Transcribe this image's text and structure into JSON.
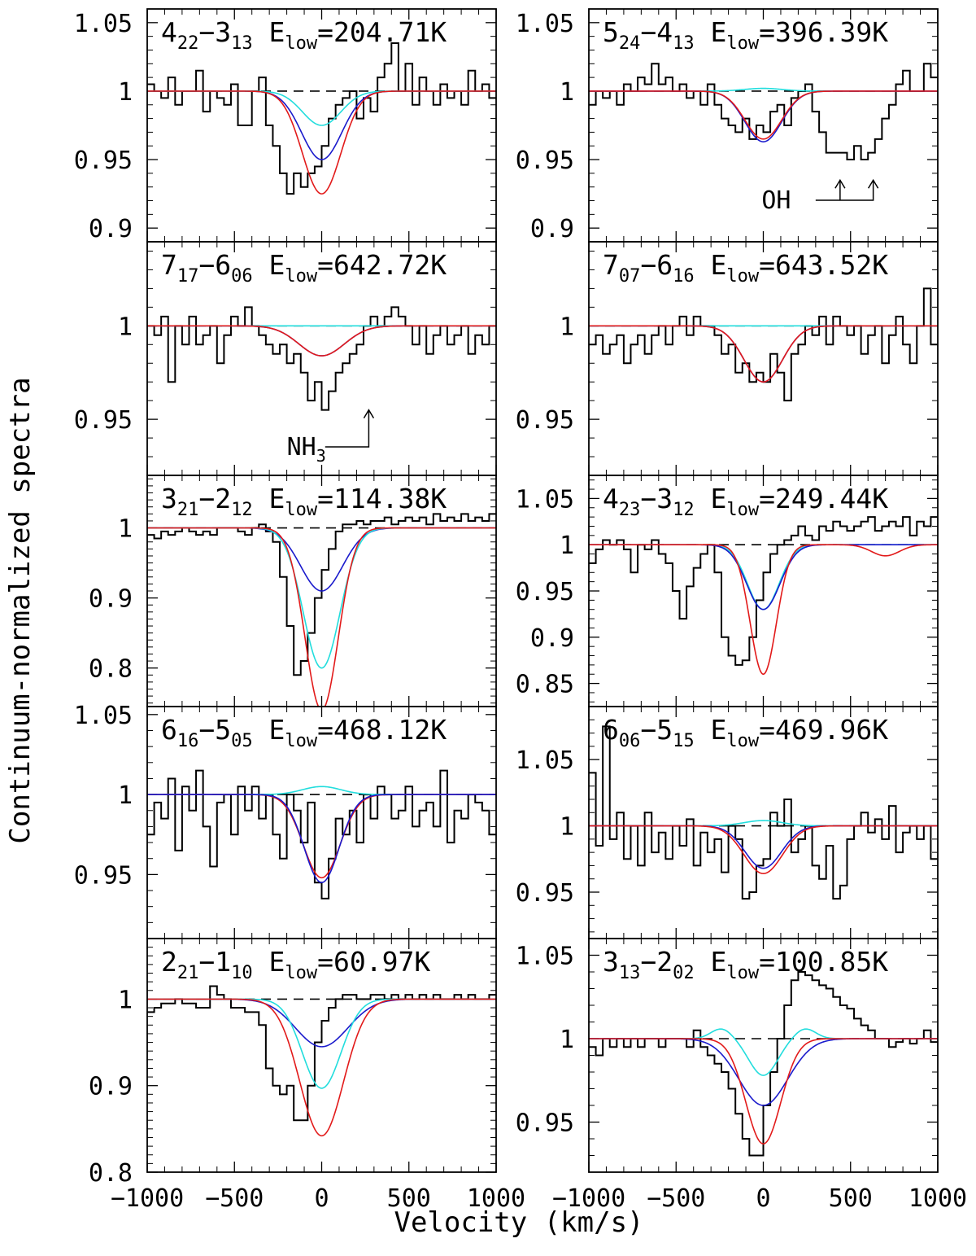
{
  "figure": {
    "xlabel": "Velocity (km/s)",
    "ylabel": "Continuum-normalized spectra"
  },
  "colors": {
    "data": "#000000",
    "continuum": "#000000",
    "model_blue": "#1a1acc",
    "model_cyan": "#22dddd",
    "model_red": "#e21a1a"
  },
  "chart_data": [
    {
      "type": "line",
      "panel": "top-left",
      "transition": {
        "upper": "4",
        "upper_sub": "22",
        "lower": "3",
        "lower_sub": "13"
      },
      "elow": "204.71K",
      "xlim": [
        -1000,
        1000
      ],
      "ylim": [
        0.89,
        1.06
      ],
      "xticks": [
        -1000,
        -500,
        0,
        500,
        1000
      ],
      "yticks": [
        0.9,
        0.95,
        1,
        1.05
      ],
      "ytick_labels": [
        "0.9",
        "0.95",
        "1",
        "1.05"
      ],
      "show_xtick_labels": false,
      "spectrum": {
        "x0": -1000,
        "dx": 40,
        "values": [
          1.005,
          1.0,
          0.995,
          1.01,
          0.99,
          1.0,
          1.0,
          1.015,
          0.985,
          1.0,
          0.995,
          0.99,
          1.005,
          0.975,
          0.975,
          1.0,
          1.01,
          0.975,
          0.96,
          0.94,
          0.925,
          0.94,
          0.93,
          0.94,
          0.945,
          0.96,
          0.98,
          0.99,
          0.995,
          1.0,
          0.98,
          0.995,
          0.985,
          1.01,
          1.02,
          1.035,
          1.0,
          1.02,
          0.99,
          1.01,
          1.0,
          0.99,
          1.005,
          0.995,
          1.0,
          0.99,
          1.015,
          1.0,
          1.005,
          0.995
        ]
      },
      "models": [
        {
          "name": "blue",
          "depth": 0.05,
          "sigma": 115
        },
        {
          "name": "cyan",
          "depth": 0.025,
          "sigma": 110
        },
        {
          "name": "red",
          "depth": 0.075,
          "sigma": 110
        }
      ],
      "annotations": []
    },
    {
      "type": "line",
      "panel": "top-right",
      "transition": {
        "upper": "5",
        "upper_sub": "24",
        "lower": "4",
        "lower_sub": "13"
      },
      "elow": "396.39K",
      "xlim": [
        -1000,
        1000
      ],
      "ylim": [
        0.89,
        1.06
      ],
      "xticks": [
        -1000,
        -500,
        0,
        500,
        1000
      ],
      "yticks": [
        0.9,
        0.95,
        1,
        1.05
      ],
      "ytick_labels": [
        "0.9",
        "0.95",
        "1",
        "1.05"
      ],
      "show_xtick_labels": false,
      "spectrum": {
        "x0": -1000,
        "dx": 40,
        "values": [
          0.99,
          1.0,
          0.995,
          1.0,
          0.99,
          1.005,
          1.0,
          1.01,
          1.005,
          1.02,
          1.005,
          1.01,
          1.0,
          1.005,
          0.995,
          1.0,
          0.99,
          1.005,
          0.99,
          0.98,
          0.975,
          0.97,
          0.98,
          0.965,
          0.975,
          0.97,
          0.985,
          0.99,
          0.975,
          0.995,
          1.0,
          1.005,
          0.985,
          0.97,
          0.955,
          0.955,
          0.955,
          0.95,
          0.96,
          0.95,
          0.955,
          0.965,
          0.98,
          0.99,
          1.005,
          1.015,
          1.0,
          1.0,
          1.02,
          1.01
        ]
      },
      "models": [
        {
          "name": "cyan",
          "depth": -0.002,
          "sigma": 110
        },
        {
          "name": "blue",
          "depth": 0.037,
          "sigma": 105
        },
        {
          "name": "red",
          "depth": 0.035,
          "sigma": 105
        }
      ],
      "annotations": [
        {
          "label": "OH"
        }
      ]
    },
    {
      "type": "line",
      "panel": "row2-left",
      "transition": {
        "upper": "7",
        "upper_sub": "17",
        "lower": "6",
        "lower_sub": "06"
      },
      "elow": "642.72K",
      "xlim": [
        -1000,
        1000
      ],
      "ylim": [
        0.92,
        1.045
      ],
      "xticks": [
        -1000,
        -500,
        0,
        500,
        1000
      ],
      "yticks": [
        0.95,
        1
      ],
      "ytick_labels": [
        "0.95",
        "1"
      ],
      "show_xtick_labels": false,
      "spectrum": {
        "x0": -1000,
        "dx": 40,
        "values": [
          1.0,
          0.995,
          1.005,
          0.97,
          1.0,
          0.99,
          1.005,
          0.99,
          0.995,
          1.0,
          0.98,
          0.995,
          1.005,
          1.0,
          1.01,
          1.0,
          0.995,
          0.99,
          0.985,
          0.99,
          0.98,
          0.985,
          0.975,
          0.96,
          0.97,
          0.955,
          0.965,
          0.975,
          0.98,
          0.985,
          0.99,
          1.0,
          1.005,
          1.0,
          1.005,
          1.01,
          1.005,
          1.0,
          0.99,
          1.0,
          0.985,
          0.995,
          1.0,
          0.99,
          0.995,
          1.0,
          0.985,
          0.995,
          0.99,
          1.0
        ]
      },
      "models": [
        {
          "name": "cyan",
          "depth": 0.0,
          "sigma": 110
        },
        {
          "name": "blue",
          "depth": 0.016,
          "sigma": 130
        },
        {
          "name": "red",
          "depth": 0.016,
          "sigma": 130
        }
      ],
      "annotations": [
        {
          "label": "NH",
          "sub": "3"
        }
      ]
    },
    {
      "type": "line",
      "panel": "row2-right",
      "transition": {
        "upper": "7",
        "upper_sub": "07",
        "lower": "6",
        "lower_sub": "16"
      },
      "elow": "643.52K",
      "xlim": [
        -1000,
        1000
      ],
      "ylim": [
        0.92,
        1.045
      ],
      "xticks": [
        -1000,
        -500,
        0,
        500,
        1000
      ],
      "yticks": [
        0.95,
        1
      ],
      "ytick_labels": [
        "0.95",
        "1"
      ],
      "show_xtick_labels": false,
      "spectrum": {
        "x0": -1000,
        "dx": 40,
        "values": [
          0.99,
          0.995,
          0.985,
          0.99,
          0.995,
          0.98,
          0.99,
          0.995,
          0.985,
          0.995,
          1.0,
          0.99,
          1.0,
          1.005,
          0.995,
          1.005,
          1.0,
          1.0,
          0.995,
          0.985,
          0.99,
          0.975,
          0.98,
          0.97,
          0.975,
          0.97,
          0.985,
          0.975,
          0.96,
          0.985,
          0.99,
          1.0,
          0.995,
          1.005,
          0.99,
          1.005,
          1.0,
          0.995,
          1.0,
          0.985,
          0.995,
          1.0,
          0.98,
          0.995,
          1.005,
          0.99,
          0.98,
          1.0,
          1.02,
          0.99
        ]
      },
      "models": [
        {
          "name": "cyan",
          "depth": 0.0,
          "sigma": 110
        },
        {
          "name": "blue",
          "depth": 0.03,
          "sigma": 110
        },
        {
          "name": "red",
          "depth": 0.03,
          "sigma": 110
        }
      ],
      "annotations": []
    },
    {
      "type": "line",
      "panel": "row3-left",
      "transition": {
        "upper": "3",
        "upper_sub": "21",
        "lower": "2",
        "lower_sub": "12"
      },
      "elow": "114.38K",
      "xlim": [
        -1000,
        1000
      ],
      "ylim": [
        0.745,
        1.075
      ],
      "xticks": [
        -1000,
        -500,
        0,
        500,
        1000
      ],
      "yticks": [
        0.8,
        0.9,
        1
      ],
      "ytick_labels": [
        "0.8",
        "0.9",
        "1"
      ],
      "show_xtick_labels": false,
      "spectrum": {
        "x0": -1000,
        "dx": 40,
        "values": [
          0.99,
          0.985,
          0.995,
          0.99,
          0.995,
          1.0,
          0.995,
          0.99,
          0.995,
          0.99,
          1.0,
          1.0,
          1.0,
          0.995,
          0.99,
          1.0,
          1.005,
          0.995,
          0.98,
          0.93,
          0.86,
          0.79,
          0.81,
          0.85,
          0.9,
          0.94,
          0.97,
          0.995,
          1.005,
          1.005,
          1.01,
          1.005,
          1.01,
          1.01,
          1.015,
          1.005,
          1.01,
          1.015,
          1.01,
          1.015,
          1.005,
          1.02,
          1.01,
          1.015,
          1.01,
          1.02,
          1.01,
          1.015,
          1.01,
          1.02
        ]
      },
      "models": [
        {
          "name": "blue",
          "depth": 0.09,
          "sigma": 120
        },
        {
          "name": "cyan",
          "depth": 0.2,
          "sigma": 105
        },
        {
          "name": "red",
          "depth": 0.26,
          "sigma": 95
        }
      ],
      "annotations": []
    },
    {
      "type": "line",
      "panel": "row3-right",
      "transition": {
        "upper": "4",
        "upper_sub": "23",
        "lower": "3",
        "lower_sub": "12"
      },
      "elow": "249.44K",
      "xlim": [
        -1000,
        1000
      ],
      "ylim": [
        0.825,
        1.075
      ],
      "xticks": [
        -1000,
        -500,
        0,
        500,
        1000
      ],
      "yticks": [
        0.85,
        0.9,
        0.95,
        1,
        1.05
      ],
      "ytick_labels": [
        "0.85",
        "0.9",
        "0.95",
        "1",
        "1.05"
      ],
      "show_xtick_labels": false,
      "spectrum": {
        "x0": -1000,
        "dx": 40,
        "values": [
          0.98,
          0.995,
          1.005,
          1.0,
          1.005,
          0.995,
          0.97,
          1.0,
          0.995,
          1.005,
          0.99,
          0.98,
          0.95,
          0.92,
          0.955,
          0.975,
          0.99,
          1.0,
          0.97,
          0.9,
          0.88,
          0.87,
          0.875,
          0.9,
          0.94,
          0.97,
          0.99,
          1.0,
          1.005,
          1.01,
          1.02,
          1.01,
          1.005,
          1.02,
          1.015,
          1.025,
          1.02,
          1.015,
          1.02,
          1.025,
          1.03,
          1.015,
          1.02,
          1.025,
          1.02,
          1.03,
          1.01,
          1.025,
          1.02,
          1.03
        ]
      },
      "models": [
        {
          "name": "cyan",
          "depth": 0.07,
          "sigma": 90
        },
        {
          "name": "blue",
          "depth": 0.07,
          "sigma": 95
        },
        {
          "name": "red",
          "depth": 0.14,
          "sigma": 75,
          "second": {
            "center": 700,
            "depth": 0.012,
            "sigma": 80
          }
        }
      ],
      "annotations": []
    },
    {
      "type": "line",
      "panel": "row4-left",
      "transition": {
        "upper": "6",
        "upper_sub": "16",
        "lower": "5",
        "lower_sub": "05"
      },
      "elow": "468.12K",
      "xlim": [
        -1000,
        1000
      ],
      "ylim": [
        0.91,
        1.055
      ],
      "xticks": [
        -1000,
        -500,
        0,
        500,
        1000
      ],
      "yticks": [
        0.95,
        1,
        1.05
      ],
      "ytick_labels": [
        "0.95",
        "1",
        "1.05"
      ],
      "show_xtick_labels": false,
      "spectrum": {
        "x0": -1000,
        "dx": 40,
        "values": [
          0.975,
          0.995,
          0.985,
          1.01,
          0.965,
          1.005,
          0.99,
          1.015,
          0.98,
          0.955,
          0.995,
          1.0,
          0.975,
          1.005,
          0.99,
          1.005,
          0.985,
          1.0,
          0.975,
          0.96,
          1.0,
          0.99,
          0.97,
          0.995,
          0.945,
          0.935,
          0.96,
          0.985,
          0.975,
          0.99,
          0.97,
          1.0,
          0.985,
          1.005,
          1.0,
          0.985,
          0.99,
          1.005,
          0.98,
          0.99,
          0.995,
          0.98,
          1.015,
          0.97,
          0.99,
          0.985,
          1.0,
          0.995,
          0.99,
          0.975
        ]
      },
      "models": [
        {
          "name": "cyan",
          "depth": -0.005,
          "sigma": 110
        },
        {
          "name": "red",
          "depth": 0.052,
          "sigma": 105
        },
        {
          "name": "blue",
          "depth": 0.055,
          "sigma": 100
        }
      ],
      "annotations": []
    },
    {
      "type": "line",
      "panel": "row4-right",
      "transition": {
        "upper": "6",
        "upper_sub": "06",
        "lower": "5",
        "lower_sub": "15"
      },
      "elow": "469.96K",
      "xlim": [
        -1000,
        1000
      ],
      "ylim": [
        0.915,
        1.09
      ],
      "xticks": [
        -1000,
        -500,
        0,
        500,
        1000
      ],
      "yticks": [
        0.95,
        1,
        1.05
      ],
      "ytick_labels": [
        "0.95",
        "1",
        "1.05"
      ],
      "show_xtick_labels": false,
      "spectrum": {
        "x0": -1000,
        "dx": 40,
        "values": [
          1.04,
          0.985,
          1.075,
          0.99,
          1.01,
          0.975,
          1.0,
          0.97,
          1.01,
          0.98,
          0.995,
          0.975,
          1.0,
          0.985,
          1.005,
          0.97,
          0.995,
          0.98,
          0.99,
          0.965,
          1.0,
          0.99,
          0.945,
          0.95,
          0.97,
          0.975,
          1.01,
          1.0,
          1.02,
          0.98,
          0.99,
          1.0,
          0.97,
          0.96,
          0.985,
          0.945,
          0.955,
          0.99,
          1.0,
          1.01,
          0.995,
          1.005,
          0.99,
          1.015,
          0.98,
          0.995,
          1.0,
          0.99,
          1.0,
          0.975
        ]
      },
      "models": [
        {
          "name": "cyan",
          "depth": -0.004,
          "sigma": 110
        },
        {
          "name": "blue",
          "depth": 0.032,
          "sigma": 105
        },
        {
          "name": "red",
          "depth": 0.036,
          "sigma": 110
        }
      ],
      "annotations": []
    },
    {
      "type": "line",
      "panel": "bottom-left",
      "transition": {
        "upper": "2",
        "upper_sub": "21",
        "lower": "1",
        "lower_sub": "10"
      },
      "elow": "60.97K",
      "xlim": [
        -1000,
        1000
      ],
      "ylim": [
        0.8,
        1.07
      ],
      "xticks": [
        -1000,
        -500,
        0,
        500,
        1000
      ],
      "yticks": [
        0.8,
        0.9,
        1
      ],
      "ytick_labels": [
        "0.8",
        "0.9",
        "1"
      ],
      "show_xtick_labels": true,
      "xtick_labels": [
        "−1000",
        "−500",
        "0",
        "500",
        "1000"
      ],
      "spectrum": {
        "x0": -1000,
        "dx": 40,
        "values": [
          0.985,
          0.99,
          0.995,
          0.995,
          1.0,
          0.995,
          0.995,
          0.99,
          0.99,
          1.015,
          1.005,
          1.0,
          0.99,
          0.99,
          0.985,
          0.985,
          0.97,
          0.92,
          0.9,
          0.89,
          0.9,
          0.86,
          0.86,
          0.9,
          0.95,
          0.975,
          0.99,
          1.0,
          1.005,
          1.005,
          1.0,
          1.0,
          1.005,
          1.005,
          1.0,
          1.005,
          1.0,
          1.005,
          1.0,
          1.005,
          1.0,
          1.005,
          1.0,
          1.0,
          1.005,
          1.0,
          1.005,
          1.0,
          1.0,
          1.005
        ]
      },
      "models": [
        {
          "name": "blue",
          "depth": 0.055,
          "sigma": 150
        },
        {
          "name": "cyan",
          "depth": 0.103,
          "sigma": 110
        },
        {
          "name": "red",
          "depth": 0.158,
          "sigma": 125
        }
      ],
      "annotations": []
    },
    {
      "type": "line",
      "panel": "bottom-right",
      "transition": {
        "upper": "3",
        "upper_sub": "13",
        "lower": "2",
        "lower_sub": "02"
      },
      "elow": "100.85K",
      "xlim": [
        -1000,
        1000
      ],
      "ylim": [
        0.92,
        1.06
      ],
      "xticks": [
        -1000,
        -500,
        0,
        500,
        1000
      ],
      "yticks": [
        0.95,
        1,
        1.05
      ],
      "ytick_labels": [
        "0.95",
        "1",
        "1.05"
      ],
      "show_xtick_labels": true,
      "xtick_labels": [
        "−1000",
        "−500",
        "0",
        "500",
        "1000"
      ],
      "spectrum": {
        "x0": -1000,
        "dx": 40,
        "values": [
          0.995,
          0.99,
          1.0,
          0.995,
          1.0,
          0.995,
          1.0,
          0.995,
          1.0,
          1.0,
          0.995,
          1.0,
          1.0,
          1.0,
          0.995,
          1.005,
          0.995,
          0.99,
          0.985,
          0.98,
          0.97,
          0.955,
          0.94,
          0.93,
          0.93,
          0.96,
          0.98,
          1.0,
          1.02,
          1.035,
          1.04,
          1.038,
          1.035,
          1.032,
          1.03,
          1.025,
          1.02,
          1.018,
          1.012,
          1.008,
          1.005,
          1.0,
          1.0,
          0.995,
          0.998,
          1.0,
          0.997,
          1.0,
          1.005,
          0.998
        ]
      },
      "models": [
        {
          "name": "cyan",
          "depth": 0.022,
          "sigma": 80,
          "wings": {
            "offset": 240,
            "height": 0.006,
            "sigma": 60
          }
        },
        {
          "name": "blue",
          "depth": 0.04,
          "sigma": 140
        },
        {
          "name": "red",
          "depth": 0.063,
          "sigma": 100
        }
      ],
      "annotations": []
    }
  ]
}
